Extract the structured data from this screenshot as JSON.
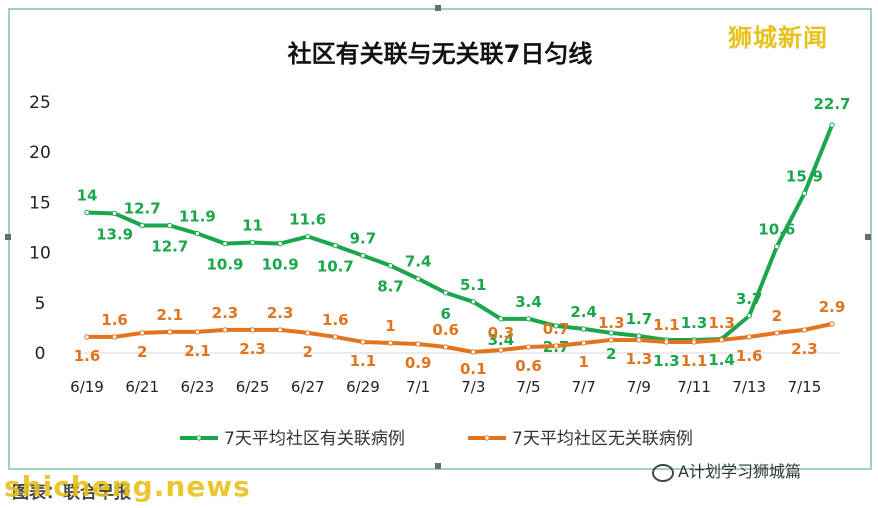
{
  "chart_data": {
    "type": "line",
    "title": "社区有关联与无关联7日匀线",
    "categories": [
      "6/19",
      "6/20",
      "6/21",
      "6/22",
      "6/23",
      "6/24",
      "6/25",
      "6/26",
      "6/27",
      "6/28",
      "6/29",
      "6/30",
      "7/1",
      "7/2",
      "7/3",
      "7/4",
      "7/5",
      "7/6",
      "7/7",
      "7/8",
      "7/9",
      "7/10",
      "7/11",
      "7/12",
      "7/13",
      "7/14",
      "7/15",
      "7/16"
    ],
    "x_tick_labels": [
      "6/19",
      "6/21",
      "6/23",
      "6/25",
      "6/27",
      "6/29",
      "7/1",
      "7/3",
      "7/5",
      "7/7",
      "7/9",
      "7/11",
      "7/13",
      "7/15"
    ],
    "ylim": [
      0,
      25
    ],
    "y_ticks": [
      "0",
      "5",
      "10",
      "15",
      "20",
      "25"
    ],
    "grid": false,
    "legend_position": "bottom",
    "series": [
      {
        "name": "7天平均社区有关联病例",
        "color": "#1aa64a",
        "values": [
          14,
          13.9,
          12.7,
          12.7,
          11.9,
          10.9,
          11,
          10.9,
          11.6,
          10.7,
          9.7,
          8.7,
          7.4,
          6,
          5.1,
          3.4,
          3.4,
          2.7,
          2.4,
          2,
          1.7,
          1.3,
          1.3,
          1.4,
          3.7,
          10.6,
          15.9,
          22.7
        ],
        "labels": [
          "14",
          "13.9",
          "12.7",
          "12.7",
          "11.9",
          "10.9",
          "11",
          "10.9",
          "11.6",
          "10.7",
          "9.7",
          "8.7",
          "7.4",
          "6",
          "5.1",
          "3.4",
          "3.4",
          "2.7",
          "2.4",
          "2",
          "1.7",
          "1.3",
          "1.3",
          "1.4",
          "3.7",
          "10.6",
          "15.9",
          "22.7"
        ]
      },
      {
        "name": "7天平均社区无关联病例",
        "color": "#e2731f",
        "values": [
          1.6,
          1.6,
          2,
          2.1,
          2.1,
          2.3,
          2.3,
          2.3,
          2,
          1.6,
          1.1,
          1,
          0.9,
          0.6,
          0.1,
          0.3,
          0.6,
          0.7,
          1,
          1.3,
          1.3,
          1.1,
          1.1,
          1.3,
          1.6,
          2,
          2.3,
          2.9
        ],
        "labels": [
          "1.6",
          "1.6",
          "2",
          "2.1",
          "2.1",
          "2.3",
          "2.3",
          "2.3",
          "2",
          "1.6",
          "1.1",
          "1",
          "0.9",
          "0.6",
          "0.1",
          "0.3",
          "0.6",
          "0.7",
          "1",
          "1.3",
          "1.3",
          "1.1",
          "1.1",
          "1.3",
          "1.6",
          "2",
          "2.3",
          "2.9"
        ]
      }
    ]
  },
  "watermark_top": "狮城新闻",
  "watermark_bottom": "shicheng.news",
  "source": "图表：联合早报",
  "wechat_label": "A计划学习狮城篇"
}
